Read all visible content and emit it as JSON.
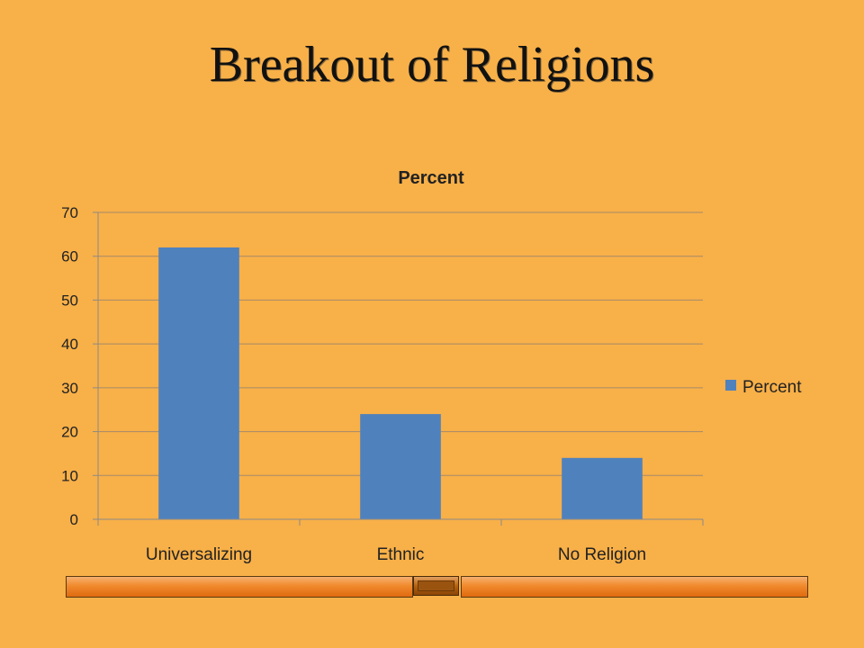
{
  "slide": {
    "title": "Breakout of Religions"
  },
  "chart_data": {
    "type": "bar",
    "title": "Percent",
    "categories": [
      "Universalizing",
      "Ethnic",
      "No Religion"
    ],
    "series": [
      {
        "name": "Percent",
        "values": [
          62,
          24,
          14
        ],
        "color": "#4f81bd"
      }
    ],
    "ylim": [
      0,
      70
    ],
    "yticks": [
      0,
      10,
      20,
      30,
      40,
      50,
      60,
      70
    ],
    "grid": true,
    "legend": "right"
  },
  "colors": {
    "background": "#f8b048",
    "gridline": "#a58a6a",
    "axis": "#8a8a8a"
  }
}
